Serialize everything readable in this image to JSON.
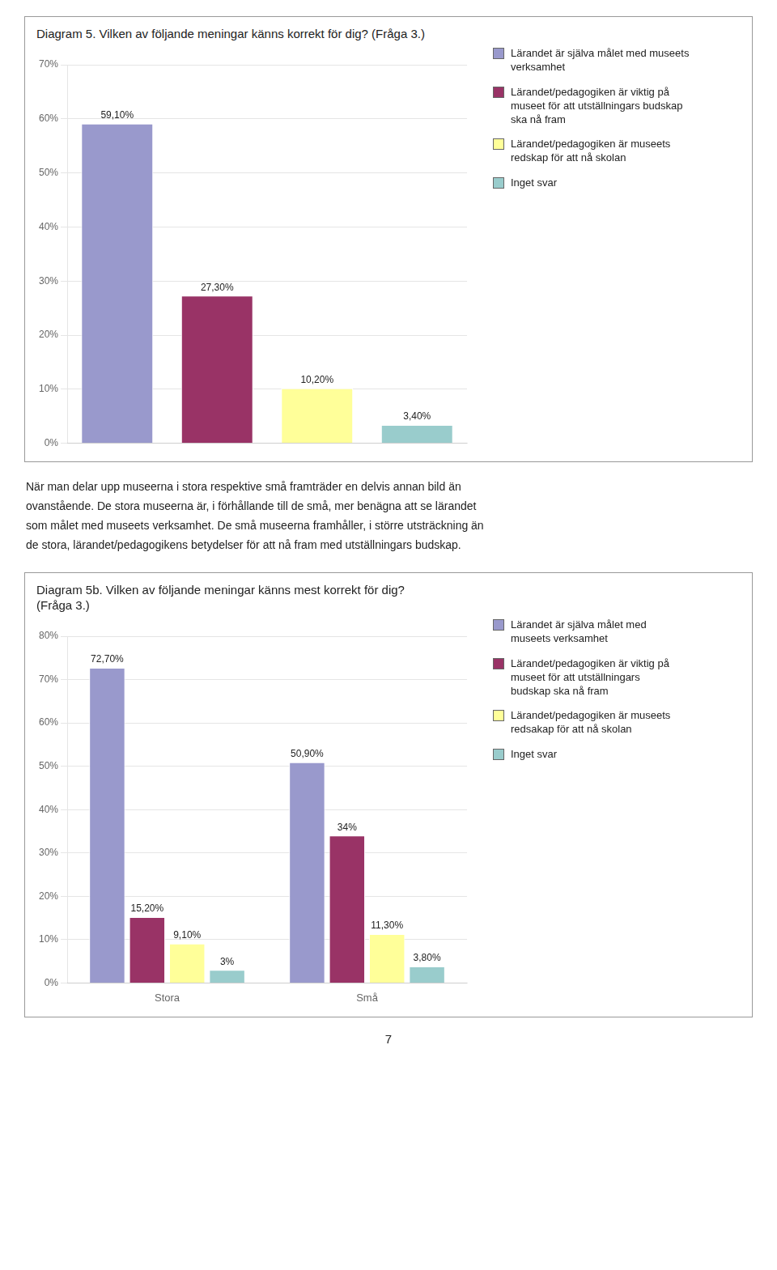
{
  "chart_data": [
    {
      "type": "bar",
      "title": "Diagram 5. Vilken av följande meningar känns korrekt för dig? (Fråga 3.)",
      "categories": [
        "Lärandet är själva målet med museets\nverksamhet",
        "Lärandet/pedagogiken är viktig på\nmuseet för att utställningars budskap\nska nå fram",
        "Lärandet/pedagogiken är museets\nredskap för att nå skolan",
        "Inget svar"
      ],
      "values": [
        59.1,
        27.3,
        10.2,
        3.4
      ],
      "value_labels": [
        "59,10%",
        "27,30%",
        "10,20%",
        "3,40%"
      ],
      "colors": [
        "#9999cc",
        "#993366",
        "#ffff99",
        "#99cccc"
      ],
      "ylim": [
        0,
        70
      ],
      "yticks": [
        {
          "value": 0,
          "label": "0%"
        },
        {
          "value": 10,
          "label": "10%"
        },
        {
          "value": 20,
          "label": "20%"
        },
        {
          "value": 30,
          "label": "30%"
        },
        {
          "value": 40,
          "label": "40%"
        },
        {
          "value": 50,
          "label": "50%"
        },
        {
          "value": 60,
          "label": "60%"
        },
        {
          "value": 70,
          "label": "70%"
        }
      ],
      "grid": true,
      "legend": "right",
      "data_labels": true,
      "tick_labels": "y"
    },
    {
      "type": "bar",
      "title": "Diagram 5b. Vilken av följande meningar känns mest korrekt för dig?",
      "subtitle": "(Fråga 3.)",
      "categories": [
        "Stora",
        "Små"
      ],
      "series": [
        {
          "name": "Lärandet är själva målet med\nmuseets verksamhet",
          "color": "#9999cc",
          "values": [
            72.7,
            50.9
          ],
          "value_labels": [
            "72,70%",
            "50,90%"
          ]
        },
        {
          "name": "Lärandet/pedagogiken är viktig på\nmuseet för att utställningars\nbudskap ska nå fram",
          "color": "#993366",
          "values": [
            15.2,
            34.0
          ],
          "value_labels": [
            "15,20%",
            "34%"
          ]
        },
        {
          "name": "Lärandet/pedagogiken är museets\nredsakap för att nå skolan",
          "color": "#ffff99",
          "values": [
            9.1,
            11.3
          ],
          "value_labels": [
            "9,10%",
            "11,30%"
          ]
        },
        {
          "name": "Inget svar",
          "color": "#99cccc",
          "values": [
            3.0,
            3.8
          ],
          "value_labels": [
            "3%",
            "3,80%"
          ]
        }
      ],
      "ylim": [
        0,
        80
      ],
      "yticks": [
        {
          "value": 0,
          "label": "0%"
        },
        {
          "value": 10,
          "label": "10%"
        },
        {
          "value": 20,
          "label": "20%"
        },
        {
          "value": 30,
          "label": "30%"
        },
        {
          "value": 40,
          "label": "40%"
        },
        {
          "value": 50,
          "label": "50%"
        },
        {
          "value": 60,
          "label": "60%"
        },
        {
          "value": 70,
          "label": "70%"
        },
        {
          "value": 80,
          "label": "80%"
        }
      ],
      "grid": true,
      "legend": "right",
      "data_labels": true
    }
  ],
  "annotations": [
    "När man delar upp museerna i stora respektive små framträder en delvis annan bild än",
    "ovanstående. De stora museerna är, i förhållande till de små, mer benägna att se lärandet",
    "som målet med museets verksamhet. De små museerna framhåller, i större utsträckning än",
    "de stora, lärandet/pedagogikens betydelser för att nå fram med utställningars budskap."
  ],
  "page_number": "7"
}
